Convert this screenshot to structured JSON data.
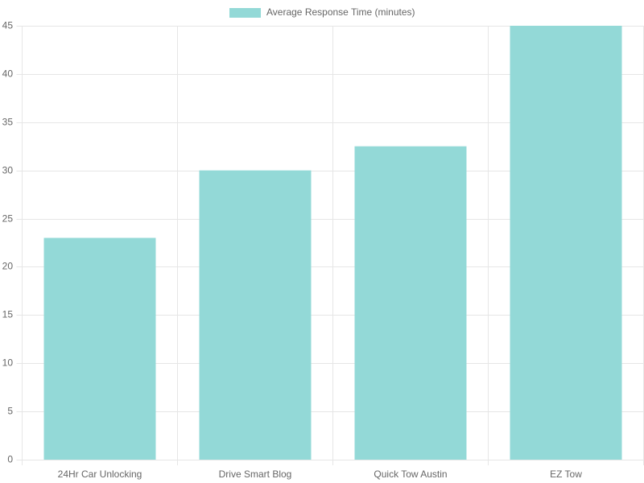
{
  "chart_data": {
    "type": "bar",
    "categories": [
      "24Hr Car Unlocking",
      "Drive Smart Blog",
      "Quick Tow Austin",
      "EZ Tow"
    ],
    "series": [
      {
        "name": "Average Response Time (minutes)",
        "color": "#93d9d7",
        "values": [
          23,
          30,
          32.5,
          45
        ]
      }
    ],
    "ylim": [
      0,
      45
    ],
    "yticks": [
      0,
      5,
      10,
      15,
      20,
      25,
      30,
      35,
      40,
      45
    ],
    "grid": true
  }
}
